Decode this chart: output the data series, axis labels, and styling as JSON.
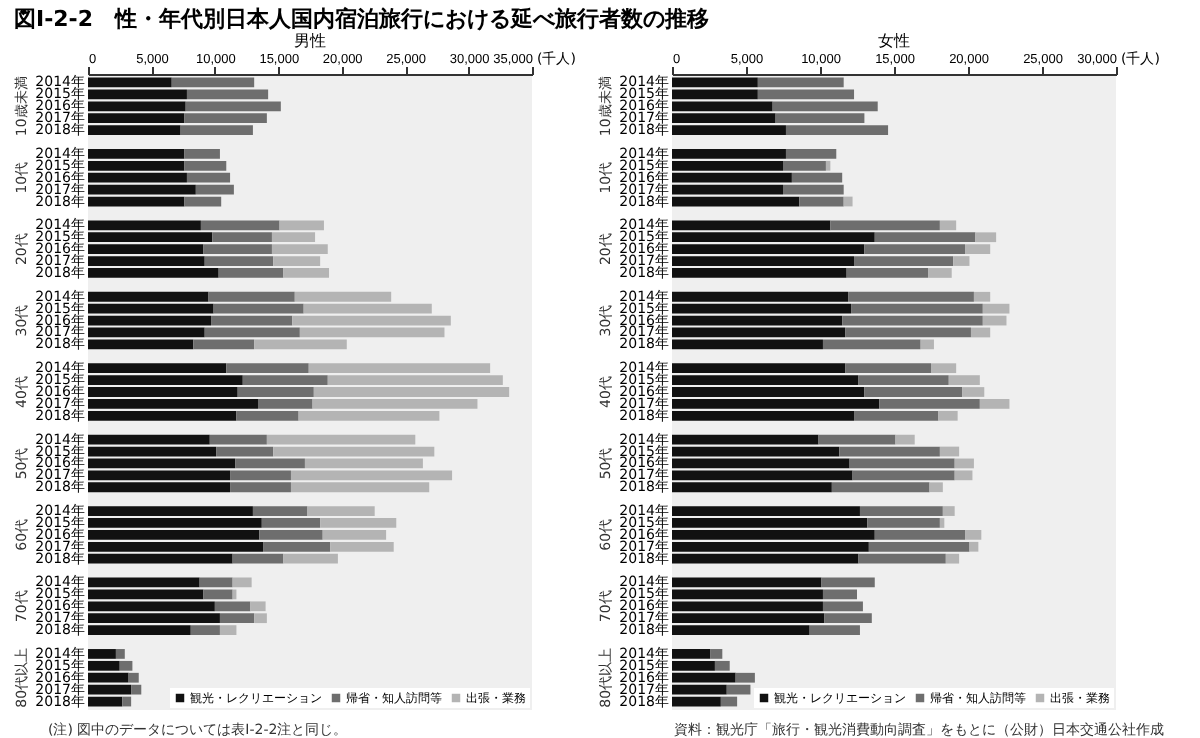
{
  "chart_data": [
    {
      "type": "bar",
      "orientation": "horizontal",
      "stacked": true,
      "legend": "bottom right",
      "title": "図Ⅰ-2-2　性・年代別日本人国内宿泊旅行における延べ旅行者数の推移",
      "subtitle": "男性",
      "xlabel": "(千人)",
      "xlim": [
        0,
        35000
      ],
      "xticks": [
        0,
        {
          "value": 5000,
          "label": "5,000"
        },
        {
          "value": 10000,
          "label": "10,000"
        },
        {
          "value": 15000,
          "label": "15,000"
        },
        {
          "value": 20000,
          "label": "20,000"
        },
        {
          "value": 25000,
          "label": "25,000"
        },
        {
          "value": 30000,
          "label": "30,000"
        },
        {
          "value": 35000,
          "label": "35,000"
        }
      ],
      "categories": [
        "2014年",
        "2015年",
        "2016年",
        "2017年",
        "2018年",
        null,
        "2014年",
        "2015年",
        "2016年",
        "2017年",
        "2018年",
        null,
        "2014年",
        "2015年",
        "2016年",
        "2017年",
        "2018年",
        null,
        "2014年",
        "2015年",
        "2016年",
        "2017年",
        "2018年",
        null,
        "2014年",
        "2015年",
        "2016年",
        "2017年",
        "2018年",
        null,
        "2014年",
        "2015年",
        "2016年",
        "2017年",
        "2018年",
        null,
        "2014年",
        "2015年",
        "2016年",
        "2017年",
        "2018年",
        null,
        "2014年",
        "2015年",
        "2016年",
        "2017年",
        "2018年",
        null,
        "2014年",
        "2015年",
        "2016年",
        "2017年",
        "2018年"
      ],
      "series": [
        {
          "name": "観光・レクリエーション",
          "color": "#111111",
          "values": [
            6600,
            7800,
            7700,
            7600,
            7300,
            null,
            7600,
            7600,
            7800,
            8500,
            7600,
            null,
            8900,
            9800,
            9100,
            9200,
            10300,
            null,
            9500,
            9900,
            9700,
            9200,
            8300,
            null,
            10900,
            12200,
            11800,
            13400,
            11700,
            null,
            9600,
            10100,
            11600,
            11200,
            11200,
            null,
            13000,
            13700,
            13500,
            13800,
            11400,
            null,
            8800,
            9100,
            10000,
            10400,
            8100,
            null,
            2200,
            2500,
            3200,
            3400,
            2700
          ]
        },
        {
          "name": "帰省・知人訪問等",
          "color": "#6e6e6e",
          "values": [
            6500,
            6400,
            7500,
            6500,
            5700,
            null,
            2800,
            3300,
            3400,
            3000,
            2900,
            null,
            6200,
            4700,
            5400,
            5400,
            5100,
            null,
            6800,
            7100,
            6400,
            7500,
            4800,
            null,
            6500,
            6700,
            6000,
            4300,
            4900,
            null,
            4500,
            4500,
            5500,
            4800,
            4800,
            null,
            4300,
            4600,
            5000,
            5300,
            4000,
            null,
            2600,
            2300,
            2800,
            2700,
            2300,
            null,
            700,
            1000,
            800,
            800,
            700
          ]
        },
        {
          "name": "出張・業務",
          "color": "#b4b4b4",
          "values": [
            null,
            null,
            null,
            null,
            null,
            null,
            null,
            null,
            null,
            null,
            null,
            null,
            3500,
            3400,
            4400,
            3700,
            3600,
            null,
            7600,
            10100,
            12500,
            11400,
            7300,
            null,
            14300,
            13800,
            15400,
            13000,
            11100,
            null,
            11700,
            12700,
            9300,
            12700,
            10900,
            null,
            5300,
            6000,
            5000,
            5000,
            4300,
            null,
            1500,
            300,
            1200,
            1000,
            1300,
            null,
            null,
            null,
            null,
            null,
            null
          ]
        }
      ],
      "annotations": [
        "10歳未満",
        "10代",
        "20代",
        "30代",
        "40代",
        "50代",
        "60代",
        "70代",
        "80代以上",
        "(注) 図中のデータについては表Ⅰ-2-2注と同じ。"
      ]
    },
    {
      "type": "bar",
      "orientation": "horizontal",
      "stacked": true,
      "legend": "bottom right",
      "subtitle": "女性",
      "xlabel": "(千人)",
      "xlim": [
        0,
        30000
      ],
      "xticks": [
        0,
        {
          "value": 5000,
          "label": "5,000"
        },
        {
          "value": 10000,
          "label": "10,000"
        },
        {
          "value": 15000,
          "label": "15,000"
        },
        {
          "value": 20000,
          "label": "20,000"
        },
        {
          "value": 25000,
          "label": "25,000"
        },
        {
          "value": 30000,
          "label": "30,000"
        }
      ],
      "categories": [
        "2014年",
        "2015年",
        "2016年",
        "2017年",
        "2018年",
        null,
        "2014年",
        "2015年",
        "2016年",
        "2017年",
        "2018年",
        null,
        "2014年",
        "2015年",
        "2016年",
        "2017年",
        "2018年",
        null,
        "2014年",
        "2015年",
        "2016年",
        "2017年",
        "2018年",
        null,
        "2014年",
        "2015年",
        "2016年",
        "2017年",
        "2018年",
        null,
        "2014年",
        "2015年",
        "2016年",
        "2017年",
        "2018年",
        null,
        "2014年",
        "2015年",
        "2016年",
        "2017年",
        "2018年",
        null,
        "2014年",
        "2015年",
        "2016年",
        "2017年",
        "2018年",
        null,
        "2014年",
        "2015年",
        "2016年",
        "2017年",
        "2018年"
      ],
      "series": [
        {
          "name": "観光・レクリエーション",
          "color": "#111111",
          "values": [
            5800,
            5800,
            6800,
            7000,
            7700,
            null,
            7700,
            7500,
            8100,
            7500,
            8600,
            null,
            10700,
            13700,
            13000,
            12300,
            11800,
            null,
            11900,
            12100,
            11500,
            11700,
            10200,
            null,
            11700,
            12600,
            13000,
            14000,
            12300,
            null,
            9900,
            11300,
            12000,
            12200,
            10800,
            null,
            12700,
            13200,
            13700,
            13300,
            12600,
            null,
            10100,
            10200,
            10200,
            10300,
            9300,
            null,
            2600,
            2900,
            4300,
            3700,
            3300
          ]
        },
        {
          "name": "帰省・知人訪問等",
          "color": "#6e6e6e",
          "values": [
            5800,
            6500,
            7100,
            6000,
            6900,
            null,
            3400,
            2900,
            3400,
            4100,
            3000,
            null,
            7400,
            6800,
            6800,
            6700,
            5500,
            null,
            8500,
            8900,
            9500,
            8500,
            6600,
            null,
            5800,
            6100,
            6600,
            6800,
            5700,
            null,
            5200,
            6800,
            7100,
            6900,
            6600,
            null,
            5600,
            4900,
            6100,
            6800,
            5900,
            null,
            3600,
            2300,
            2700,
            3200,
            3400,
            null,
            800,
            1000,
            1300,
            1600,
            1100
          ]
        },
        {
          "name": "出張・業務",
          "color": "#b4b4b4",
          "values": [
            null,
            null,
            null,
            null,
            null,
            null,
            null,
            300,
            null,
            null,
            600,
            null,
            1100,
            1400,
            1700,
            1100,
            1600,
            null,
            1100,
            1800,
            1600,
            1300,
            900,
            null,
            1700,
            2100,
            1500,
            2000,
            1300,
            null,
            1300,
            1300,
            1300,
            1200,
            900,
            null,
            800,
            300,
            1100,
            600,
            900,
            null,
            null,
            null,
            null,
            null,
            null,
            null,
            null,
            null,
            null,
            null,
            null
          ]
        }
      ],
      "annotations": [
        "10歳未満",
        "10代",
        "20代",
        "30代",
        "40代",
        "50代",
        "60代",
        "70代",
        "80代以上",
        "資料：観光庁「旅行・観光消費動向調査」をもとに（公財）日本交通公社作成"
      ]
    }
  ]
}
